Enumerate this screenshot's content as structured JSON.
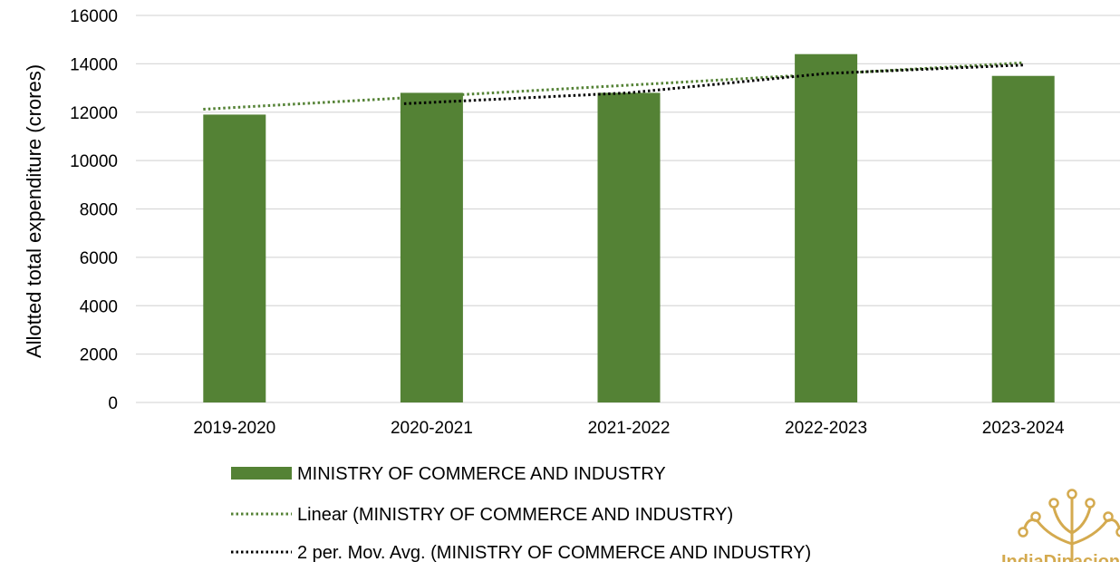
{
  "chart_data": {
    "type": "bar",
    "categories": [
      "2019-2020",
      "2020-2021",
      "2021-2022",
      "2022-2023",
      "2023-2024"
    ],
    "series": [
      {
        "name": "MINISTRY OF COMMERCE AND INDUSTRY",
        "values": [
          11900,
          12800,
          12800,
          14400,
          13500
        ]
      }
    ],
    "trendlines": [
      {
        "name": "Linear (MINISTRY OF COMMERCE AND INDUSTRY)",
        "kind": "linear",
        "style": "dotted",
        "color": "#548235"
      },
      {
        "name": "2 per. Mov. Avg. (MINISTRY OF COMMERCE AND INDUSTRY)",
        "kind": "moving-average",
        "period": 2,
        "style": "dotted",
        "color": "#000000"
      }
    ],
    "title": "",
    "xlabel": "",
    "ylabel": "Allotted total expenditure (crores)",
    "ylim": [
      0,
      16000
    ],
    "yticks": [
      "0",
      "2000",
      "4000",
      "6000",
      "8000",
      "10000",
      "12000",
      "14000",
      "16000"
    ],
    "grid": true,
    "legend_position": "bottom"
  },
  "colors": {
    "bar": "#548235",
    "grid": "#d9d9d9",
    "logo": "#d4aa4f"
  },
  "logo": {
    "icon": "tree-logo-icon",
    "text": "IndiaDipacion"
  }
}
